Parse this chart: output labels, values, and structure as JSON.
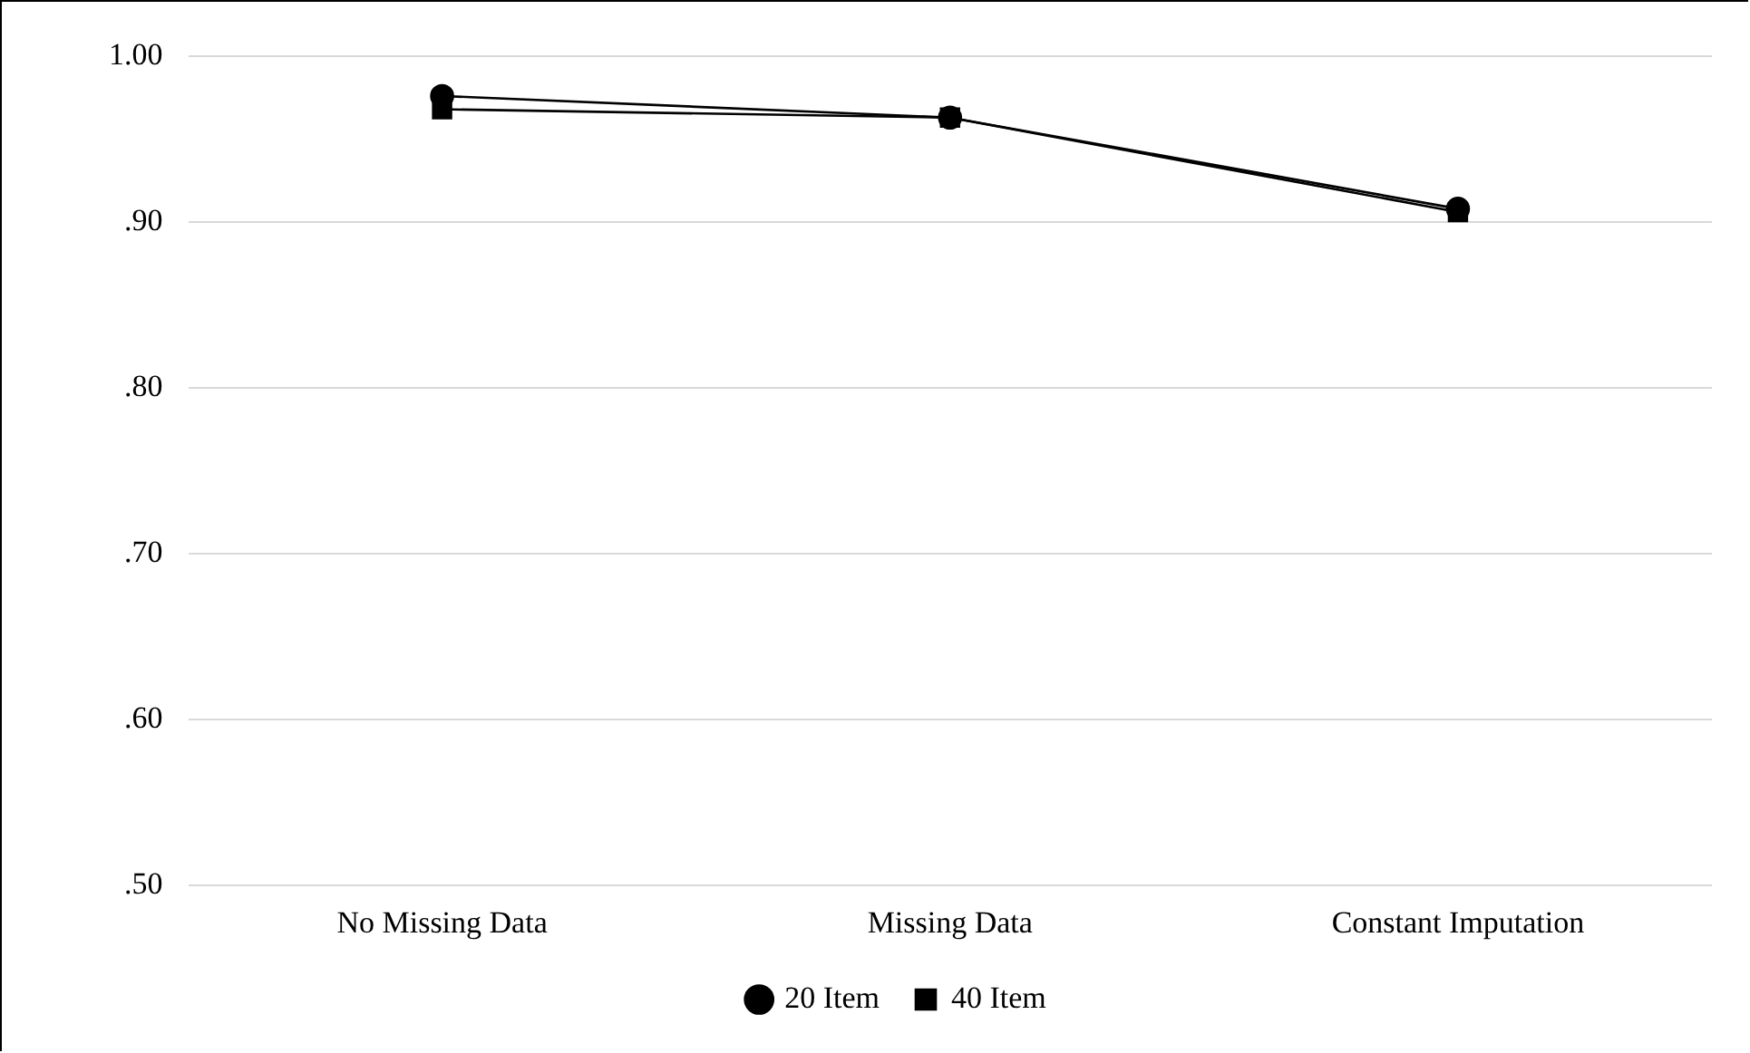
{
  "chart_data": {
    "type": "line",
    "categories": [
      "No Missing Data",
      "Missing Data",
      "Constant Imputation"
    ],
    "series": [
      {
        "name": "20 Item",
        "color": "#000000",
        "marker": "circle",
        "values": [
          0.976,
          0.963,
          0.908
        ]
      },
      {
        "name": "40 Item",
        "color": "#000000",
        "marker": "square",
        "values": [
          0.968,
          0.963,
          0.906
        ]
      }
    ],
    "ylim": [
      0.5,
      1.0
    ],
    "yticks": [
      {
        "value": 0.5,
        "label": ".50"
      },
      {
        "value": 0.6,
        "label": ".60"
      },
      {
        "value": 0.7,
        "label": ".70"
      },
      {
        "value": 0.8,
        "label": ".80"
      },
      {
        "value": 0.9,
        "label": ".90"
      },
      {
        "value": 1.0,
        "label": "1.00"
      }
    ],
    "grid": "y",
    "legend": "bottom",
    "line_style": "solid"
  }
}
